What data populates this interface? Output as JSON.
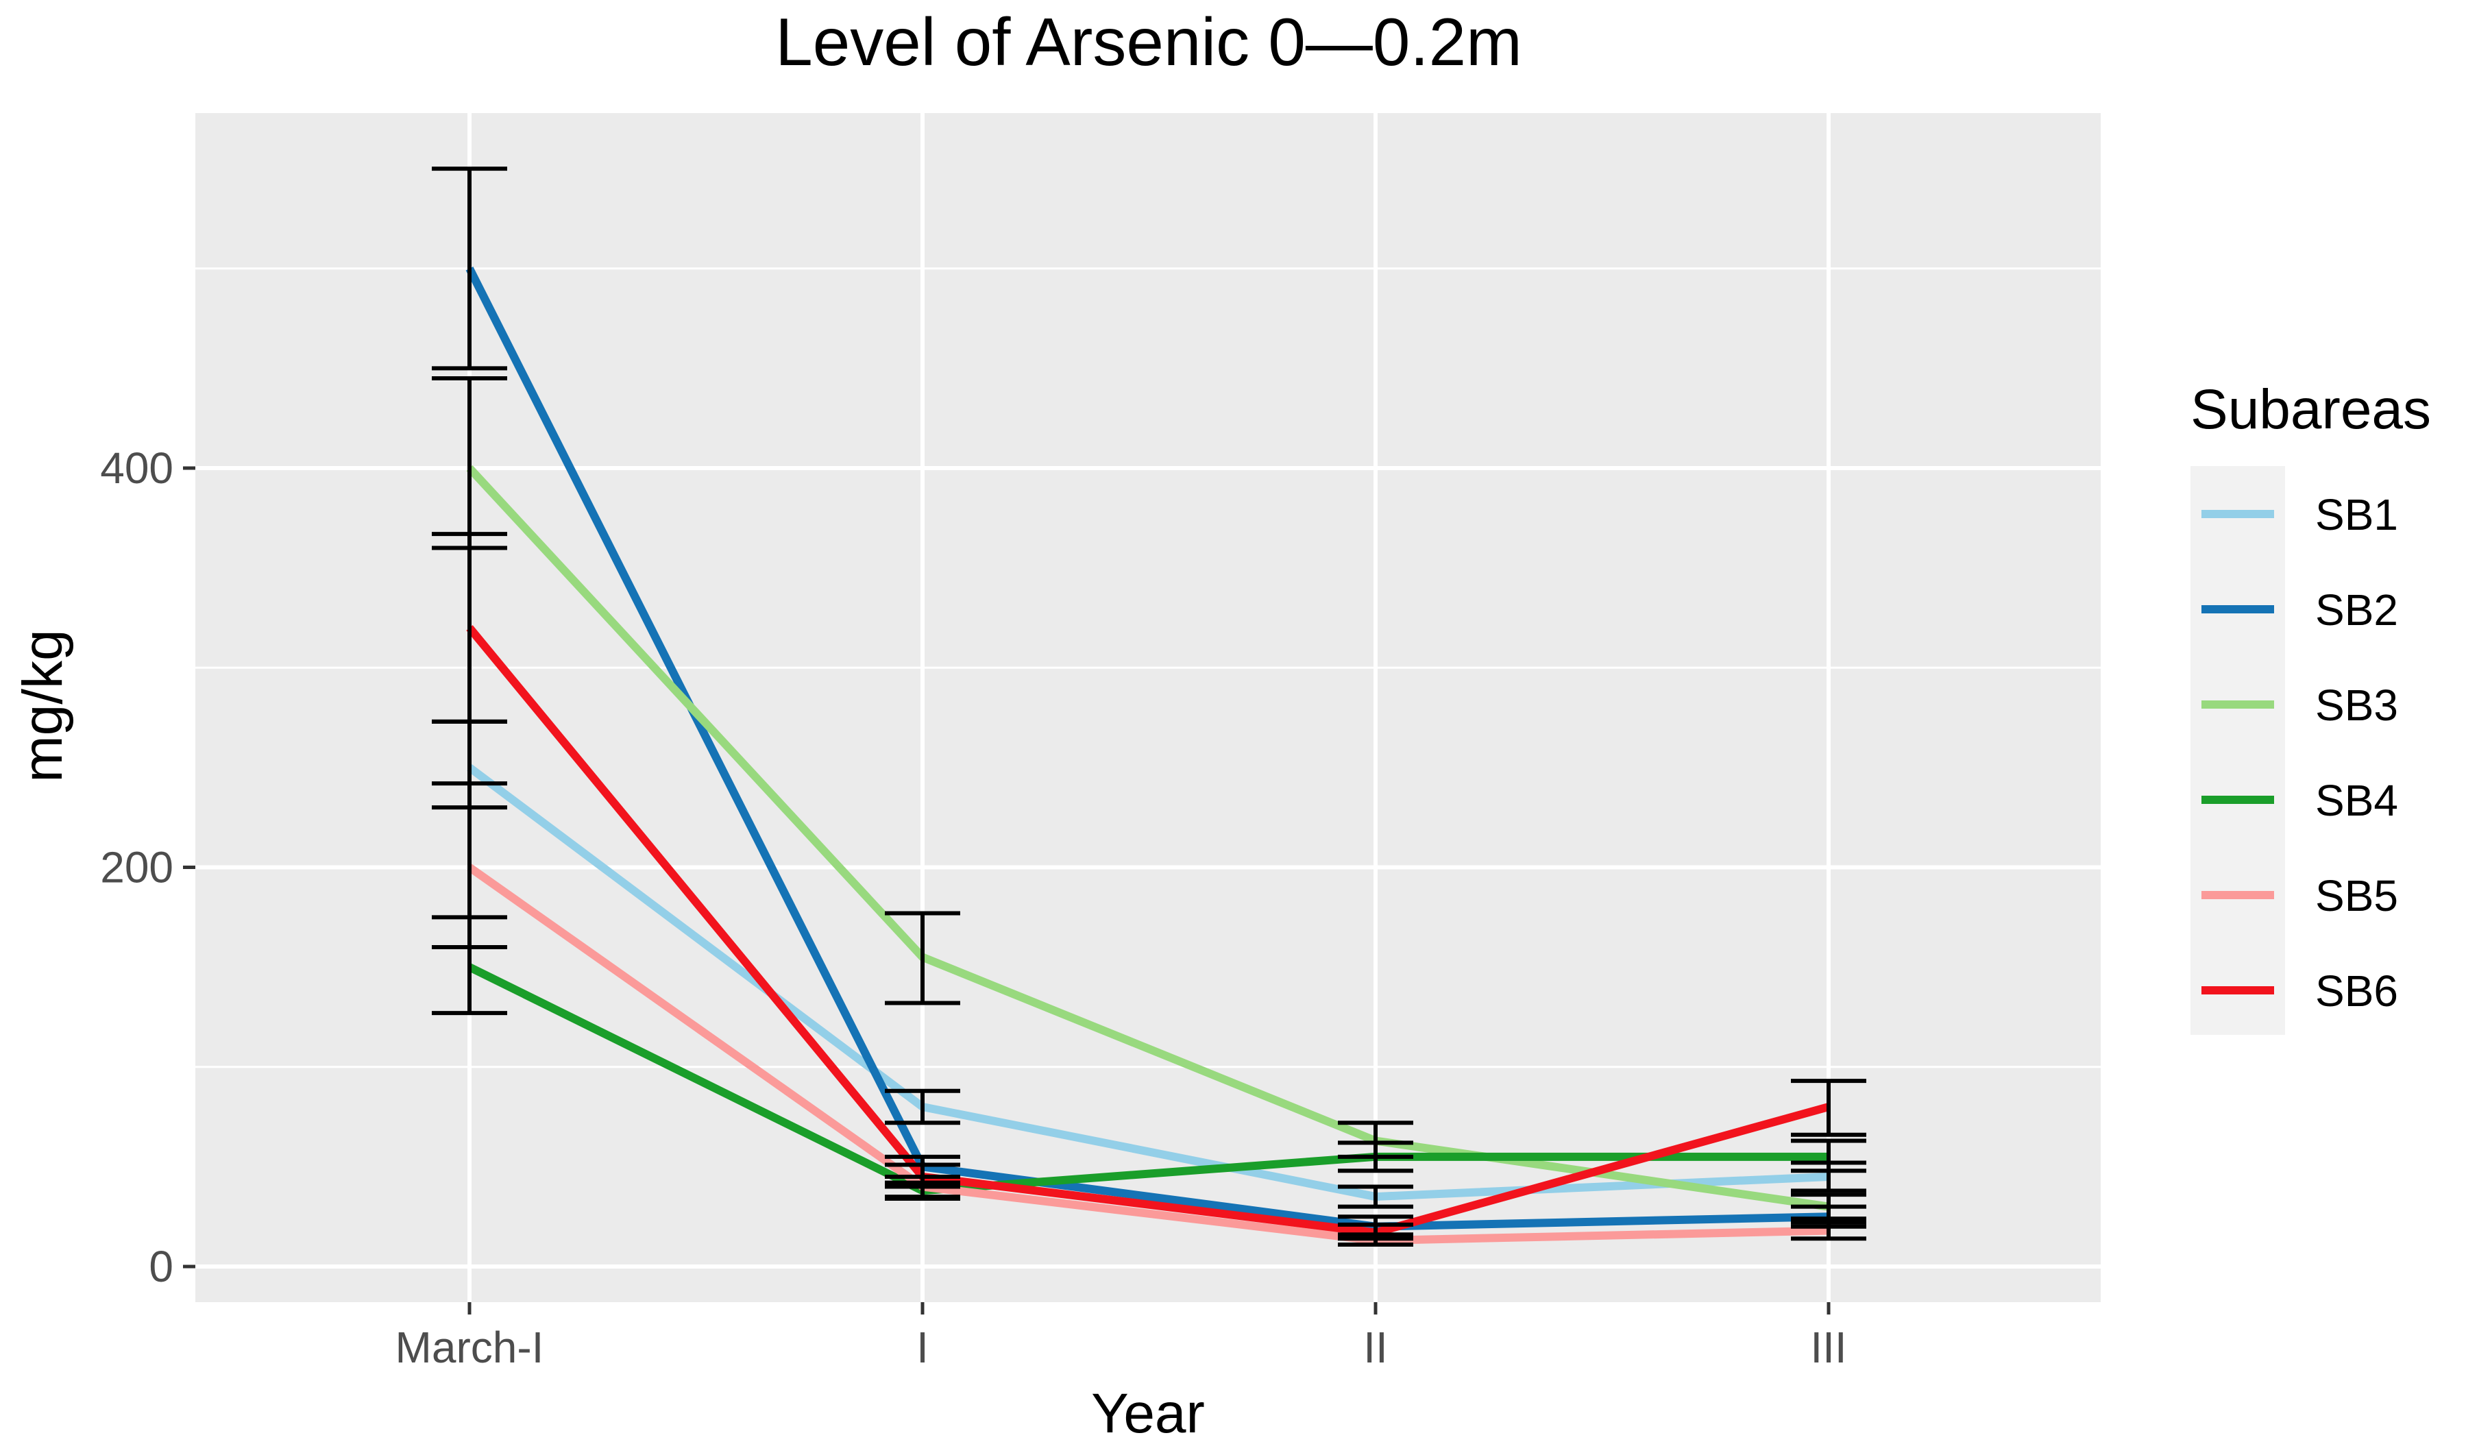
{
  "chart_data": {
    "type": "line",
    "title": "Level of Arsenic 0—0.2m",
    "xlabel": "Year",
    "ylabel": "mg/kg",
    "categories": [
      "March-I",
      "I",
      "II",
      "III"
    ],
    "ylim": [
      -20,
      575
    ],
    "yticks": [
      0,
      200,
      400
    ],
    "grid": true,
    "legend": {
      "title": "Subareas",
      "position": "right"
    },
    "series": [
      {
        "name": "SB1",
        "color": "#93cfe8",
        "values": [
          250,
          80,
          35,
          45
        ],
        "error_low": [
          230,
          72,
          30,
          38
        ],
        "error_high": [
          273,
          88,
          40,
          52
        ]
      },
      {
        "name": "SB2",
        "color": "#1573b5",
        "values": [
          500,
          50,
          20,
          25
        ],
        "error_low": [
          450,
          45,
          16,
          20
        ],
        "error_high": [
          550,
          55,
          25,
          30
        ]
      },
      {
        "name": "SB3",
        "color": "#98d97e",
        "values": [
          400,
          155,
          63,
          30
        ],
        "error_low": [
          360,
          132,
          55,
          24
        ],
        "error_high": [
          445,
          177,
          72,
          36
        ]
      },
      {
        "name": "SB4",
        "color": "#1a9e2a",
        "values": [
          150,
          38,
          55,
          55
        ],
        "error_low": [
          127,
          34,
          48,
          48
        ],
        "error_high": [
          175,
          42,
          62,
          63
        ]
      },
      {
        "name": "SB5",
        "color": "#fb9a99",
        "values": [
          200,
          40,
          13,
          18
        ],
        "error_low": [
          160,
          35,
          11,
          14
        ],
        "error_high": [
          242,
          45,
          16,
          22
        ]
      },
      {
        "name": "SB6",
        "color": "#f2131d",
        "values": [
          320,
          45,
          17,
          80
        ],
        "error_low": [
          273,
          40,
          14,
          66
        ],
        "error_high": [
          367,
          51,
          21,
          93
        ]
      }
    ]
  }
}
